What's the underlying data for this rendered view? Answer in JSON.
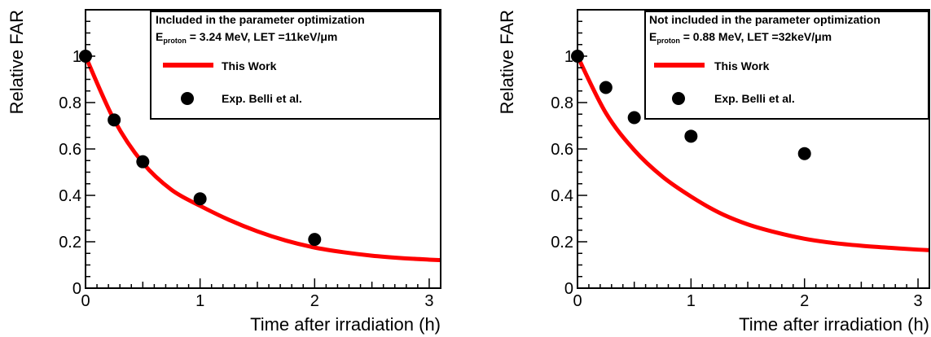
{
  "chart_data": [
    {
      "type": "scatter",
      "ylabel": "Relative FAR",
      "xlabel": "Time after irradiation (h)",
      "xlim": [
        0,
        3.1
      ],
      "ylim": [
        0,
        1.2
      ],
      "x_ticks": [
        "0",
        "1",
        "2",
        "3"
      ],
      "y_ticks": [
        "0",
        "0.2",
        "0.4",
        "0.6",
        "0.8",
        "1"
      ],
      "legend": {
        "placement": "top-right",
        "title_line1": "Included in the parameter optimization",
        "line2_prefix": "E",
        "line2_subscript": "proton",
        "line2_rest": " = 3.24 MeV, LET =11keV/μm",
        "entries": [
          "This Work",
          "Exp. Belli et al."
        ]
      },
      "series": [
        {
          "name": "This Work",
          "kind": "line",
          "color": "#ff0000",
          "x": [
            0,
            0.25,
            0.5,
            0.75,
            1.0,
            1.25,
            1.5,
            1.75,
            2.0,
            2.25,
            2.5,
            2.75,
            3.0,
            3.1
          ],
          "y": [
            1.0,
            0.725,
            0.54,
            0.424,
            0.355,
            0.295,
            0.245,
            0.205,
            0.175,
            0.155,
            0.14,
            0.13,
            0.123,
            0.121
          ]
        },
        {
          "name": "Exp. Belli et al.",
          "kind": "points",
          "color": "#000000",
          "x": [
            0,
            0.25,
            0.5,
            1.0,
            2.0
          ],
          "y": [
            1.0,
            0.725,
            0.545,
            0.385,
            0.21
          ]
        }
      ]
    },
    {
      "type": "scatter",
      "ylabel": "Relative FAR",
      "xlabel": "Time after irradiation (h)",
      "xlim": [
        0,
        3.1
      ],
      "ylim": [
        0,
        1.2
      ],
      "x_ticks": [
        "0",
        "1",
        "2",
        "3"
      ],
      "y_ticks": [
        "0",
        "0.2",
        "0.4",
        "0.6",
        "0.8",
        "1"
      ],
      "legend": {
        "placement": "top-right",
        "title_line1": "Not included in the parameter optimization",
        "line2_prefix": "E",
        "line2_subscript": "proton",
        "line2_rest": " = 0.88 MeV, LET =32keV/μm",
        "entries": [
          "This Work",
          "Exp. Belli et al."
        ]
      },
      "series": [
        {
          "name": "This Work",
          "kind": "line",
          "color": "#ff0000",
          "x": [
            0,
            0.25,
            0.5,
            0.75,
            1.0,
            1.25,
            1.5,
            1.75,
            2.0,
            2.25,
            2.5,
            2.75,
            3.0,
            3.1
          ],
          "y": [
            1.0,
            0.755,
            0.595,
            0.48,
            0.395,
            0.325,
            0.275,
            0.24,
            0.213,
            0.195,
            0.183,
            0.174,
            0.166,
            0.164
          ]
        },
        {
          "name": "Exp. Belli et al.",
          "kind": "points",
          "color": "#000000",
          "x": [
            0,
            0.25,
            0.5,
            1.0,
            2.0
          ],
          "y": [
            1.0,
            0.865,
            0.735,
            0.655,
            0.58
          ]
        }
      ]
    }
  ]
}
